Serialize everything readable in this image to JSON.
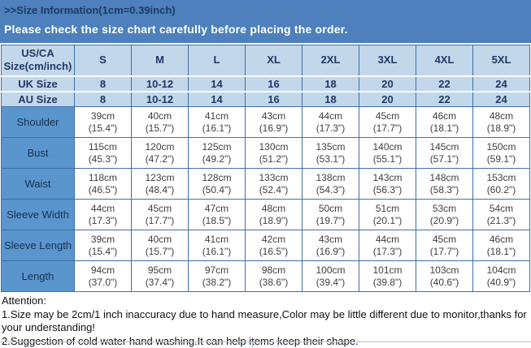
{
  "banner": {
    "title": ">>Size Information(1cm=0.39inch)",
    "subtitle": "Please check the size chart carefully before placing the order."
  },
  "size_chart": {
    "corner_header": "US/CA\nSize(cm/inch)",
    "columns": [
      "S",
      "M",
      "L",
      "XL",
      "2XL",
      "3XL",
      "4XL",
      "5XL"
    ],
    "size_rows": [
      {
        "label": "UK Size",
        "values": [
          "8",
          "10-12",
          "14",
          "16",
          "18",
          "20",
          "22",
          "24"
        ]
      },
      {
        "label": "AU Size",
        "values": [
          "8",
          "10-12",
          "14",
          "16",
          "18",
          "20",
          "22",
          "24"
        ]
      }
    ],
    "measurement_rows": [
      {
        "label": "Shoulder",
        "values": [
          "39cm\n(15.4\")",
          "40cm\n(15.7\")",
          "41cm\n(16.1\")",
          "43cm\n(16.9\")",
          "44cm\n(17.3\")",
          "45cm\n(17.7\")",
          "46cm\n(18.1\")",
          "48cm\n(18.9\")"
        ]
      },
      {
        "label": "Bust",
        "values": [
          "115cm\n(45.3\")",
          "120cm\n(47.2\")",
          "125cm\n(49.2\")",
          "130cm\n(51.2\")",
          "135cm\n(53.1\")",
          "140cm\n(55.1\")",
          "145cm\n(57.1\")",
          "150cm\n(59.1\")"
        ]
      },
      {
        "label": "Waist",
        "values": [
          "118cm\n(46.5\")",
          "123cm\n(48.4\")",
          "128cm\n(50.4\")",
          "133cm\n(52.4\")",
          "138cm\n(54.3\")",
          "143cm\n(56.3\")",
          "148cm\n(58.3\")",
          "153cm\n(60.2\")"
        ]
      },
      {
        "label": "Sleeve Width",
        "values": [
          "44cm\n(17.3\")",
          "45cm\n(17.7\")",
          "47cm\n(18.5\")",
          "48cm\n(18.9\")",
          "50cm\n(19.7\")",
          "51cm\n(20.1\")",
          "53cm\n(20.9\")",
          "54cm\n(21.3\")"
        ]
      },
      {
        "label": "Sleeve Length",
        "values": [
          "39cm\n(15.4\")",
          "40cm\n(15.7\")",
          "41cm\n(16.1\")",
          "42cm\n(16.5\")",
          "43cm\n(16.9\")",
          "44cm\n(17.3\")",
          "45cm\n(17.7\")",
          "46cm\n(18.1\")"
        ]
      },
      {
        "label": "Length",
        "values": [
          "94cm\n(37.0\")",
          "95cm\n(37.4\")",
          "97cm\n(38.2\")",
          "98cm\n(38.6\")",
          "100cm\n(39.4\")",
          "101cm\n(39.8\")",
          "103cm\n(40.6\")",
          "104cm\n(40.9\")"
        ]
      }
    ]
  },
  "attention": {
    "heading": "Attention:",
    "notes": [
      "1.Size may be 2cm/1 inch inaccuracy due to hand measure,Color may be little different due to monitor,thanks for your understanding!",
      "2.Suggestion of cold water hand washing.It can help items keep their shape."
    ]
  },
  "colors": {
    "banner_bg": "#4d80bc",
    "banner_title_text": "#1e3a63",
    "banner_subtitle_text": "#ffffff",
    "header_cell_bg": "#c3d7eb",
    "label_cell_bg": "#5b95ce",
    "grid_border": "#3f6fa8",
    "header_text": "#1f3864",
    "data_text": "#3f3f3f"
  }
}
